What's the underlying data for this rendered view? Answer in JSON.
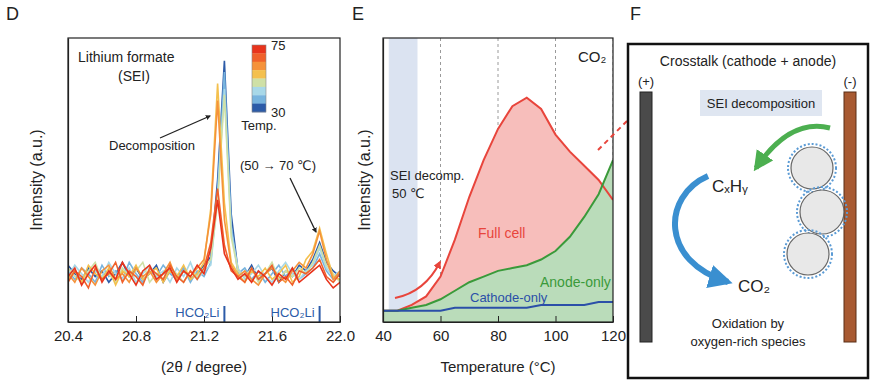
{
  "chart_data": [
    {
      "type": "line",
      "panel": "D",
      "title": "Lithium formate",
      "subtitle": "(SEI)",
      "annotations": [
        "Decomposition",
        "(50 → 70 ℃)"
      ],
      "x_label": "(2θ / degree)",
      "y_label": "Intensity (a.u.)",
      "xlim": [
        20.4,
        22.0
      ],
      "xticks": [
        20.4,
        20.8,
        21.2,
        21.6,
        {
          "value": 22.0,
          "label": "22.0"
        }
      ],
      "ylim": [
        0,
        100
      ],
      "tick_labels": "x",
      "x": [
        20.4,
        20.44,
        20.48,
        20.52,
        20.56,
        20.6,
        20.64,
        20.68,
        20.72,
        20.76,
        20.8,
        20.84,
        20.88,
        20.92,
        20.96,
        21.0,
        21.04,
        21.08,
        21.12,
        21.16,
        21.2,
        21.24,
        21.28,
        21.32,
        21.36,
        21.4,
        21.44,
        21.48,
        21.52,
        21.56,
        21.6,
        21.64,
        21.68,
        21.72,
        21.76,
        21.8,
        21.84,
        21.88,
        21.92,
        21.96,
        22.0
      ],
      "series": [
        {
          "color": "#e8341c",
          "values": [
            16,
            19,
            13,
            17,
            20,
            14,
            18,
            15,
            21,
            17,
            13,
            18,
            20,
            15,
            17,
            19,
            14,
            18,
            16,
            20,
            17,
            26,
            43,
            24,
            19,
            15,
            17,
            14,
            18,
            16,
            13,
            17,
            15,
            19,
            14,
            16,
            18,
            20,
            15,
            12,
            14
          ]
        },
        {
          "color": "#f0612b",
          "values": [
            14,
            18,
            16,
            12,
            19,
            15,
            17,
            21,
            14,
            18,
            16,
            13,
            19,
            17,
            15,
            20,
            16,
            14,
            18,
            15,
            19,
            28,
            47,
            27,
            18,
            16,
            14,
            19,
            15,
            17,
            20,
            14,
            16,
            13,
            18,
            17,
            19,
            22,
            16,
            14,
            17
          ]
        },
        {
          "color": "#f5923a",
          "values": [
            17,
            14,
            19,
            16,
            13,
            18,
            20,
            15,
            17,
            14,
            19,
            16,
            18,
            14,
            17,
            21,
            15,
            18,
            16,
            19,
            22,
            38,
            78,
            36,
            20,
            16,
            18,
            15,
            13,
            17,
            19,
            16,
            14,
            18,
            21,
            19,
            24,
            32,
            22,
            15,
            18
          ]
        },
        {
          "color": "#f4c04e",
          "values": [
            15,
            18,
            14,
            20,
            17,
            15,
            19,
            13,
            18,
            16,
            20,
            15,
            17,
            19,
            14,
            18,
            16,
            20,
            15,
            17,
            21,
            40,
            84,
            42,
            21,
            17,
            14,
            18,
            16,
            19,
            15,
            17,
            20,
            14,
            16,
            22,
            25,
            33,
            24,
            16,
            15
          ]
        },
        {
          "color": "#cfe0a6",
          "values": [
            19,
            16,
            14,
            18,
            21,
            15,
            17,
            14,
            19,
            16,
            18,
            21,
            14,
            17,
            15,
            19,
            17,
            14,
            18,
            16,
            19,
            22,
            42,
            80,
            30,
            18,
            16,
            19,
            14,
            17,
            21,
            15,
            18,
            16,
            19,
            17,
            21,
            27,
            20,
            17,
            14
          ]
        },
        {
          "color": "#a8d8e8",
          "values": [
            16,
            20,
            17,
            14,
            18,
            16,
            21,
            17,
            15,
            19,
            14,
            17,
            20,
            16,
            18,
            14,
            19,
            16,
            21,
            15,
            18,
            20,
            44,
            82,
            32,
            19,
            15,
            17,
            20,
            16,
            14,
            18,
            21,
            17,
            15,
            18,
            20,
            26,
            19,
            16,
            18
          ]
        },
        {
          "color": "#78b4de",
          "values": [
            18,
            15,
            19,
            17,
            14,
            20,
            16,
            18,
            15,
            21,
            17,
            14,
            18,
            16,
            20,
            17,
            15,
            19,
            14,
            18,
            16,
            21,
            46,
            88,
            34,
            17,
            19,
            15,
            18,
            14,
            17,
            20,
            16,
            19,
            15,
            17,
            19,
            24,
            18,
            15,
            17
          ]
        },
        {
          "color": "#2c5ba8",
          "values": [
            20,
            17,
            15,
            19,
            16,
            18,
            14,
            17,
            21,
            16,
            19,
            15,
            17,
            20,
            14,
            18,
            16,
            19,
            15,
            17,
            20,
            23,
            50,
            92,
            38,
            18,
            16,
            20,
            15,
            17,
            19,
            14,
            18,
            16,
            20,
            18,
            22,
            28,
            21,
            18,
            16
          ]
        }
      ],
      "colorbar": {
        "title": "Temp.",
        "range": [
          30,
          75
        ],
        "ticks": [
          30,
          75
        ]
      },
      "reference_peaks": [
        {
          "x": 21.32,
          "label": "HCO₂Li"
        },
        {
          "x": 21.88,
          "label": "HCO₂Li"
        }
      ]
    },
    {
      "type": "area",
      "panel": "E",
      "title": "CO₂",
      "annotations": [
        "SEI decomp.",
        "50 ℃"
      ],
      "x_label": "Temperature (°C)",
      "y_label": "Intensity (a.u.)",
      "xlim": [
        40,
        120
      ],
      "xticks": [
        40,
        60,
        80,
        100,
        120
      ],
      "ylim": [
        0,
        100
      ],
      "tick_labels": "x",
      "grid": true,
      "shaded_range": {
        "x": [
          42,
          52
        ]
      },
      "x": [
        40,
        45,
        50,
        55,
        60,
        65,
        70,
        75,
        80,
        85,
        90,
        95,
        100,
        105,
        110,
        115,
        120
      ],
      "series": [
        {
          "name": "Full cell",
          "color": "#e8453c",
          "type": "area",
          "values": [
            4,
            4,
            6,
            9,
            16,
            29,
            44,
            57,
            68,
            76,
            79,
            75,
            66,
            60,
            55,
            50,
            43
          ]
        },
        {
          "name": "Anode-only",
          "color": "#3a9a3a",
          "type": "area",
          "values": [
            4,
            4,
            5,
            6,
            8,
            11,
            14,
            16,
            18,
            19,
            20,
            22,
            25,
            30,
            37,
            45,
            57
          ]
        },
        {
          "name": "Cathode-only",
          "color": "#2b4fa8",
          "type": "line",
          "values": [
            4,
            4,
            4,
            4,
            4,
            5,
            5,
            5,
            5,
            5,
            5,
            6,
            6,
            6,
            6,
            7,
            7
          ]
        }
      ]
    }
  ],
  "diagram": {
    "panel": "F",
    "title": "Crosstalk (cathode + anode)",
    "cathode": "(+)",
    "anode": "(-)",
    "process": "SEI decomposition",
    "intermediate": "CₓHᵧ",
    "product": "CO₂",
    "caption": [
      "Oxidation by",
      "oxygen-rich species"
    ]
  }
}
